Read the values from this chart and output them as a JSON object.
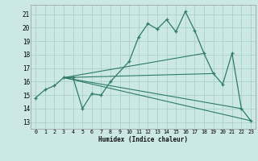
{
  "title": "",
  "xlabel": "Humidex (Indice chaleur)",
  "bg_color": "#cce8e4",
  "grid_color": "#aacfcb",
  "line_color": "#2d7a6a",
  "xlim": [
    -0.5,
    23.5
  ],
  "ylim": [
    12.5,
    21.7
  ],
  "xticks": [
    0,
    1,
    2,
    3,
    4,
    5,
    6,
    7,
    8,
    9,
    10,
    11,
    12,
    13,
    14,
    15,
    16,
    17,
    18,
    19,
    20,
    21,
    22,
    23
  ],
  "yticks": [
    13,
    14,
    15,
    16,
    17,
    18,
    19,
    20,
    21
  ],
  "main_line": {
    "x": [
      0,
      1,
      2,
      3,
      4,
      5,
      6,
      7,
      8,
      10,
      11,
      12,
      13,
      14,
      15,
      16,
      17,
      18,
      19,
      20,
      21,
      22,
      23
    ],
    "y": [
      14.8,
      15.4,
      15.7,
      16.3,
      16.3,
      14.0,
      15.1,
      15.0,
      16.0,
      17.5,
      19.3,
      20.3,
      19.9,
      20.6,
      19.7,
      21.2,
      19.8,
      18.1,
      16.6,
      15.8,
      18.1,
      14.0,
      13.1
    ]
  },
  "trend_lines": [
    {
      "x": [
        3,
        23
      ],
      "y": [
        16.3,
        13.1
      ]
    },
    {
      "x": [
        3,
        22
      ],
      "y": [
        16.3,
        14.0
      ]
    },
    {
      "x": [
        3,
        19
      ],
      "y": [
        16.3,
        16.6
      ]
    },
    {
      "x": [
        3,
        18
      ],
      "y": [
        16.3,
        18.1
      ]
    }
  ]
}
